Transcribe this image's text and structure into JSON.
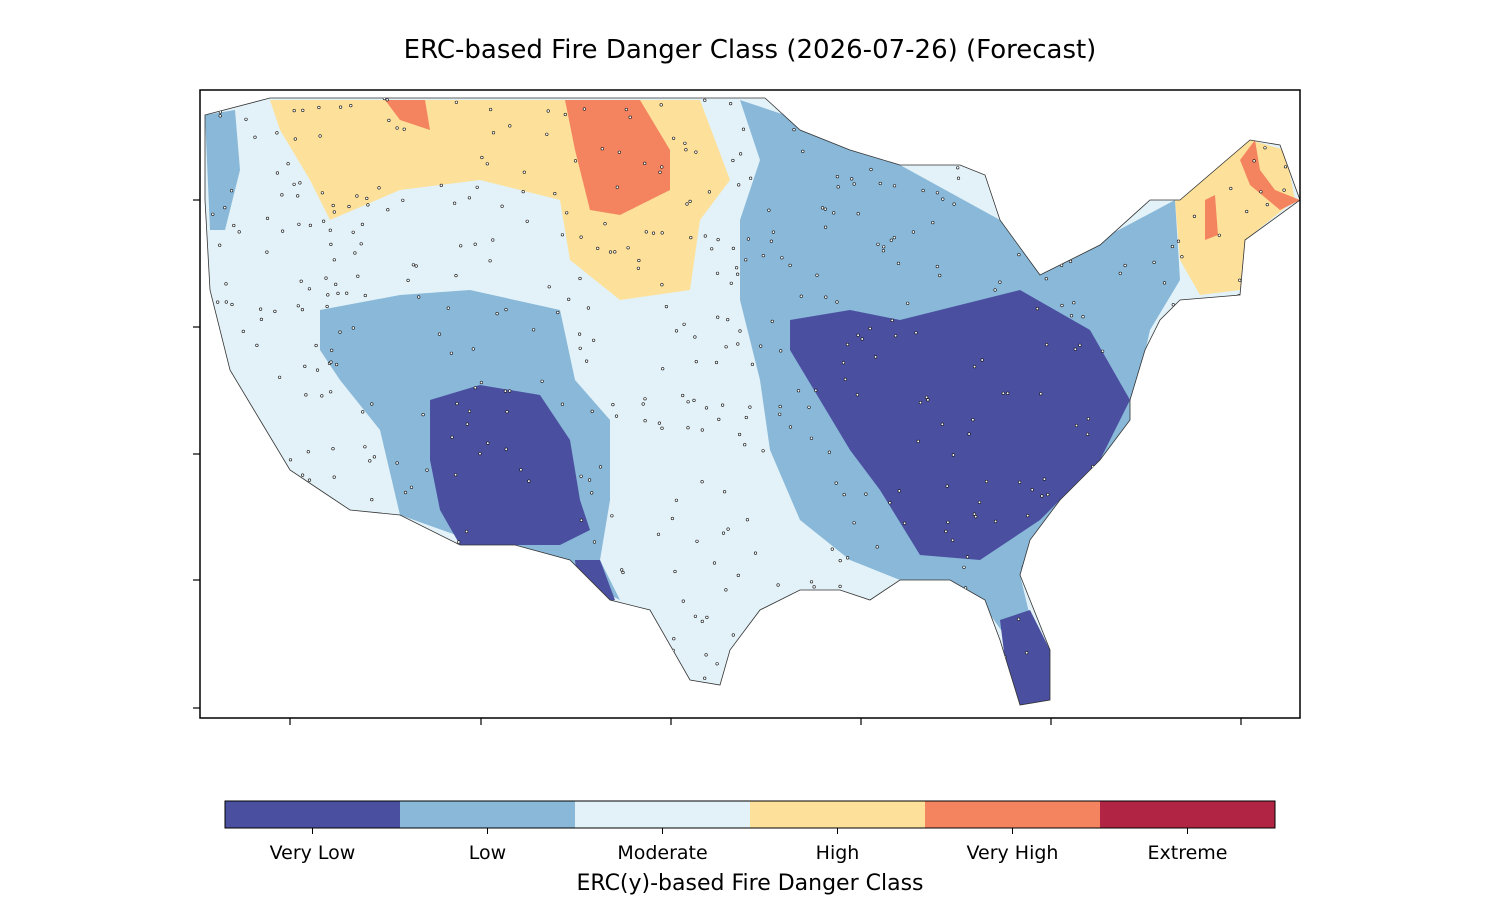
{
  "title": "ERC-based Fire Danger Class (2026-07-26) (Forecast)",
  "colorbar": {
    "label": "ERC(y)-based Fire Danger Class",
    "classes": [
      {
        "name": "Very Low",
        "color": "#4a4fa0"
      },
      {
        "name": "Low",
        "color": "#89b8d8"
      },
      {
        "name": "Moderate",
        "color": "#e2f2f8"
      },
      {
        "name": "High",
        "color": "#fde19a"
      },
      {
        "name": "Very High",
        "color": "#f4845f"
      },
      {
        "name": "Extreme",
        "color": "#b22443"
      }
    ]
  }
}
